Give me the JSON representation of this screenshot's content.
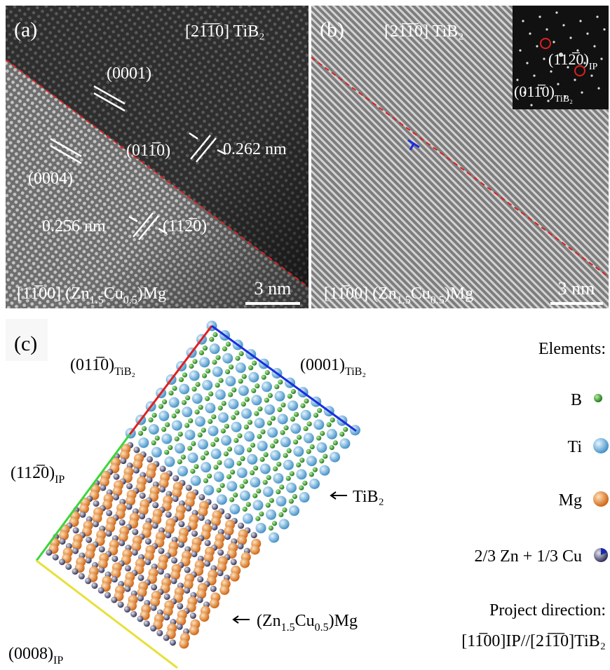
{
  "panel_a": {
    "label": "(a)",
    "zone_axis_top": "[21̅1̅0] TiB₂",
    "zone_axis_bottom": [
      {
        "text": "[11̅00] (Zn"
      },
      {
        "sub": "1.5"
      },
      {
        "text": "Cu"
      },
      {
        "sub": "0.5"
      },
      {
        "text": ")Mg"
      }
    ],
    "plane_0001": "(0001)",
    "plane_0004": "(0004)",
    "plane_tib2": "(011̅0)",
    "plane_ip": "(112̅0)",
    "spacing_tib2": "0.262 nm",
    "spacing_ip": "0.256 nm",
    "scale_bar": "3 nm"
  },
  "panel_b": {
    "label": "(b)",
    "zone_axis_top": "[21̅1̅0] TiB₂",
    "zone_axis_bottom": [
      {
        "text": "[11̅00] (Zn"
      },
      {
        "sub": "1.5"
      },
      {
        "text": "Cu"
      },
      {
        "sub": "0.5"
      },
      {
        "text": ")Mg"
      }
    ],
    "fft_spot_ip": [
      {
        "text": "(112̅0)"
      },
      {
        "sub": "IP"
      }
    ],
    "fft_spot_tib2": [
      {
        "text": "(011̅0)"
      },
      {
        "sub": "TiB₂"
      }
    ],
    "scale_bar": "3 nm"
  },
  "panel_c": {
    "label": "(c)",
    "plane_tib2_prism": [
      {
        "text": "(011̅0)"
      },
      {
        "sub": "TiB₂"
      }
    ],
    "plane_tib2_basal": [
      {
        "text": "(0001)"
      },
      {
        "sub": "TiB₂"
      }
    ],
    "plane_ip_prism": [
      {
        "text": "(112̅0)"
      },
      {
        "sub": "IP"
      }
    ],
    "plane_ip_basal": [
      {
        "text": "(0008)"
      },
      {
        "sub": "IP"
      }
    ],
    "phase_tib2": "TiB₂",
    "phase_ip": [
      {
        "text": "(Zn"
      },
      {
        "sub": "1.5"
      },
      {
        "text": "Cu"
      },
      {
        "sub": "0.5"
      },
      {
        "text": ")Mg"
      }
    ],
    "legend": {
      "title": "Elements:",
      "items": [
        "B",
        "Ti",
        "Mg",
        "2/3 Zn + 1/3 Cu"
      ],
      "direction_title": "Project direction:",
      "direction": "[11̅00]IP//[21̅1̅0]TiB₂"
    }
  }
}
